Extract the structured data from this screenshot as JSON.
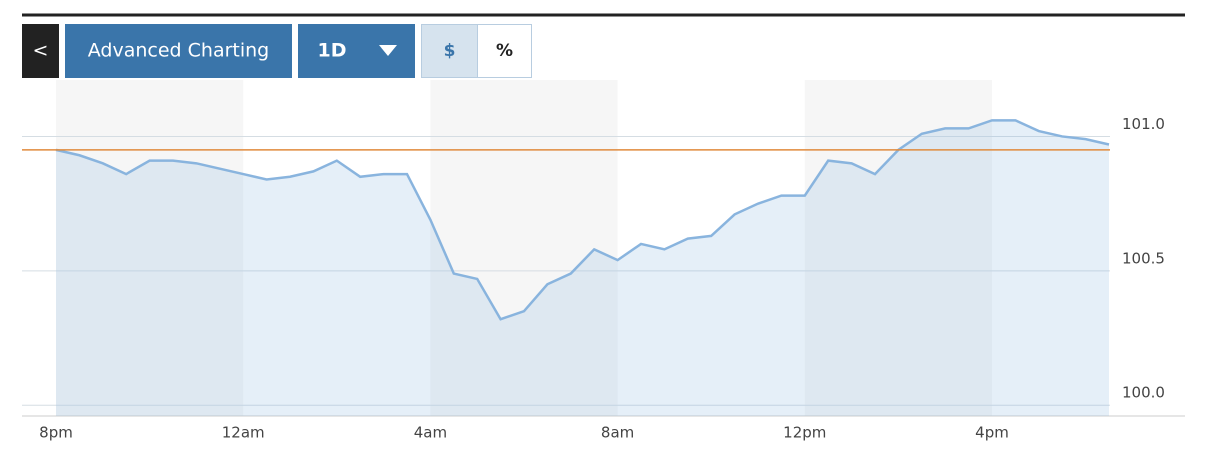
{
  "toolbar": {
    "back": "<",
    "advanced": "Advanced Charting",
    "range": "1D",
    "dollar": "$",
    "percent": "%"
  },
  "chart_data": {
    "type": "line",
    "categories": [
      "8pm",
      null,
      null,
      null,
      null,
      null,
      null,
      null,
      "12am",
      null,
      null,
      null,
      null,
      null,
      null,
      null,
      "4am",
      null,
      null,
      null,
      null,
      null,
      null,
      null,
      "8am",
      null,
      null,
      null,
      null,
      null,
      null,
      null,
      "12pm",
      null,
      null,
      null,
      null,
      null,
      null,
      null,
      "4pm",
      null,
      null,
      null,
      null,
      null
    ],
    "series": [
      {
        "color": "#89b4de",
        "values": [
          100.95,
          100.93,
          100.9,
          100.86,
          100.91,
          100.91,
          100.9,
          100.88,
          100.86,
          100.84,
          100.85,
          100.87,
          100.91,
          100.85,
          100.86,
          100.86,
          100.69,
          100.49,
          100.47,
          100.32,
          100.35,
          100.45,
          100.49,
          100.58,
          100.54,
          100.6,
          100.58,
          100.62,
          100.63,
          100.71,
          100.75,
          100.78,
          100.78,
          100.91,
          100.9,
          100.86,
          100.95,
          101.01,
          101.03,
          101.03,
          101.06,
          101.06,
          101.02,
          101.0,
          100.99,
          100.97
        ]
      }
    ],
    "reference_line": {
      "value": 100.95,
      "color": "#e08a3c"
    },
    "ylim": [
      99.96,
      101.21
    ],
    "yticks": [
      {
        "value": 100.0,
        "label": "100.0"
      },
      {
        "value": 100.5,
        "label": "100.5"
      },
      {
        "value": 101.0,
        "label": "101.0"
      }
    ],
    "grid": true
  }
}
